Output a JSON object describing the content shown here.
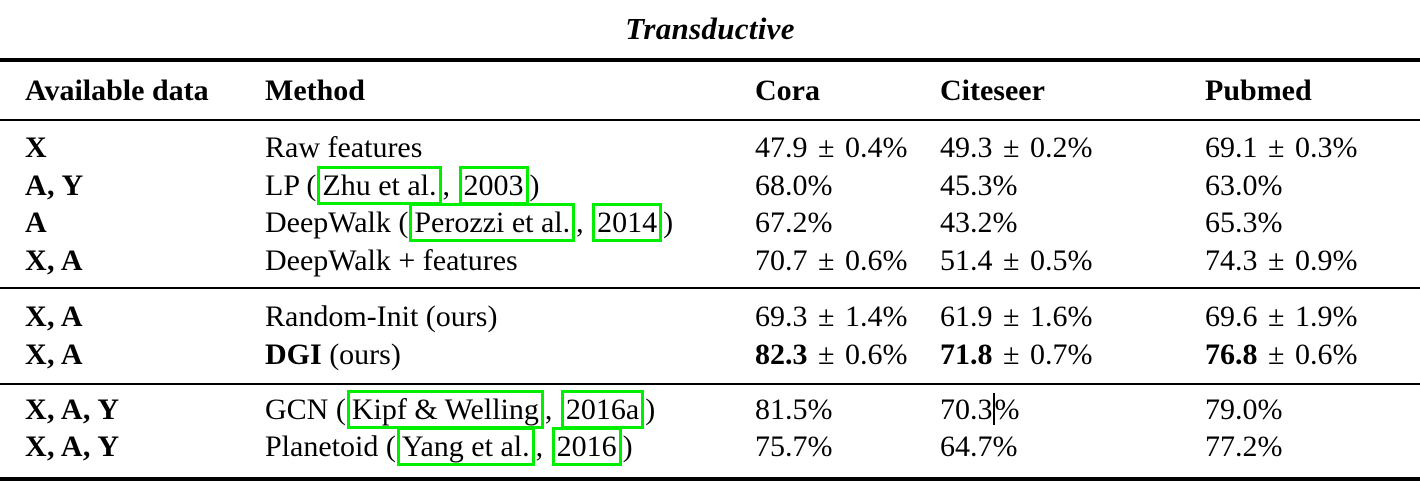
{
  "title": "Transductive",
  "colors": {
    "link_box": "#00ee00",
    "text": "#000000",
    "background": "#ffffff"
  },
  "header": {
    "available_data": "Available data",
    "method": "Method",
    "cora": "Cora",
    "citeseer": "Citeseer",
    "pubmed": "Pubmed"
  },
  "rows": [
    {
      "available": "X",
      "method": {
        "pre": "Raw features"
      },
      "cora": "47.9 ± 0.4%",
      "citeseer": "49.3 ± 0.2%",
      "pubmed": "69.1 ± 0.3%"
    },
    {
      "available": "A, Y",
      "method": {
        "pre": "LP (",
        "link1": "Zhu et al.",
        "mid": ", ",
        "link2": "2003",
        "post": ")"
      },
      "cora": "68.0%",
      "citeseer": "45.3%",
      "pubmed": "63.0%"
    },
    {
      "available": "A",
      "method": {
        "pre": "DeepWalk (",
        "link1": "Perozzi et al.",
        "mid": ", ",
        "link2": "2014",
        "post": ")"
      },
      "cora": "67.2%",
      "citeseer": "43.2%",
      "pubmed": "65.3%"
    },
    {
      "available": "X, A",
      "method": {
        "pre": "DeepWalk + features"
      },
      "cora": "70.7 ± 0.6%",
      "citeseer": "51.4 ± 0.5%",
      "pubmed": "74.3 ± 0.9%"
    },
    {
      "available": "X, A",
      "method": {
        "pre": "Random-Init (ours)"
      },
      "cora": "69.3 ± 1.4%",
      "citeseer": "61.9 ± 1.6%",
      "pubmed": "69.6 ± 1.9%"
    },
    {
      "available": "X, A",
      "method": {
        "bold": "DGI",
        "rest": " (ours)"
      },
      "cora": {
        "bold": "82.3",
        "rest": " ± 0.6%"
      },
      "citeseer": {
        "bold": "71.8",
        "rest": " ± 0.7%"
      },
      "pubmed": {
        "bold": "76.8",
        "rest": " ± 0.6%"
      }
    },
    {
      "available": "X, A, Y",
      "method": {
        "pre": "GCN (",
        "link1": "Kipf & Welling",
        "mid": ", ",
        "link2": "2016a",
        "post": ")"
      },
      "cora": "81.5%",
      "citeseer": {
        "pre": "70.3",
        "post": "%"
      },
      "pubmed": "79.0%"
    },
    {
      "available": "X, A, Y",
      "method": {
        "pre": "Planetoid (",
        "link1": "Yang et al.",
        "mid": ", ",
        "link2": "2016",
        "post": ")"
      },
      "cora": "75.7%",
      "citeseer": "64.7%",
      "pubmed": "77.2%"
    }
  ]
}
